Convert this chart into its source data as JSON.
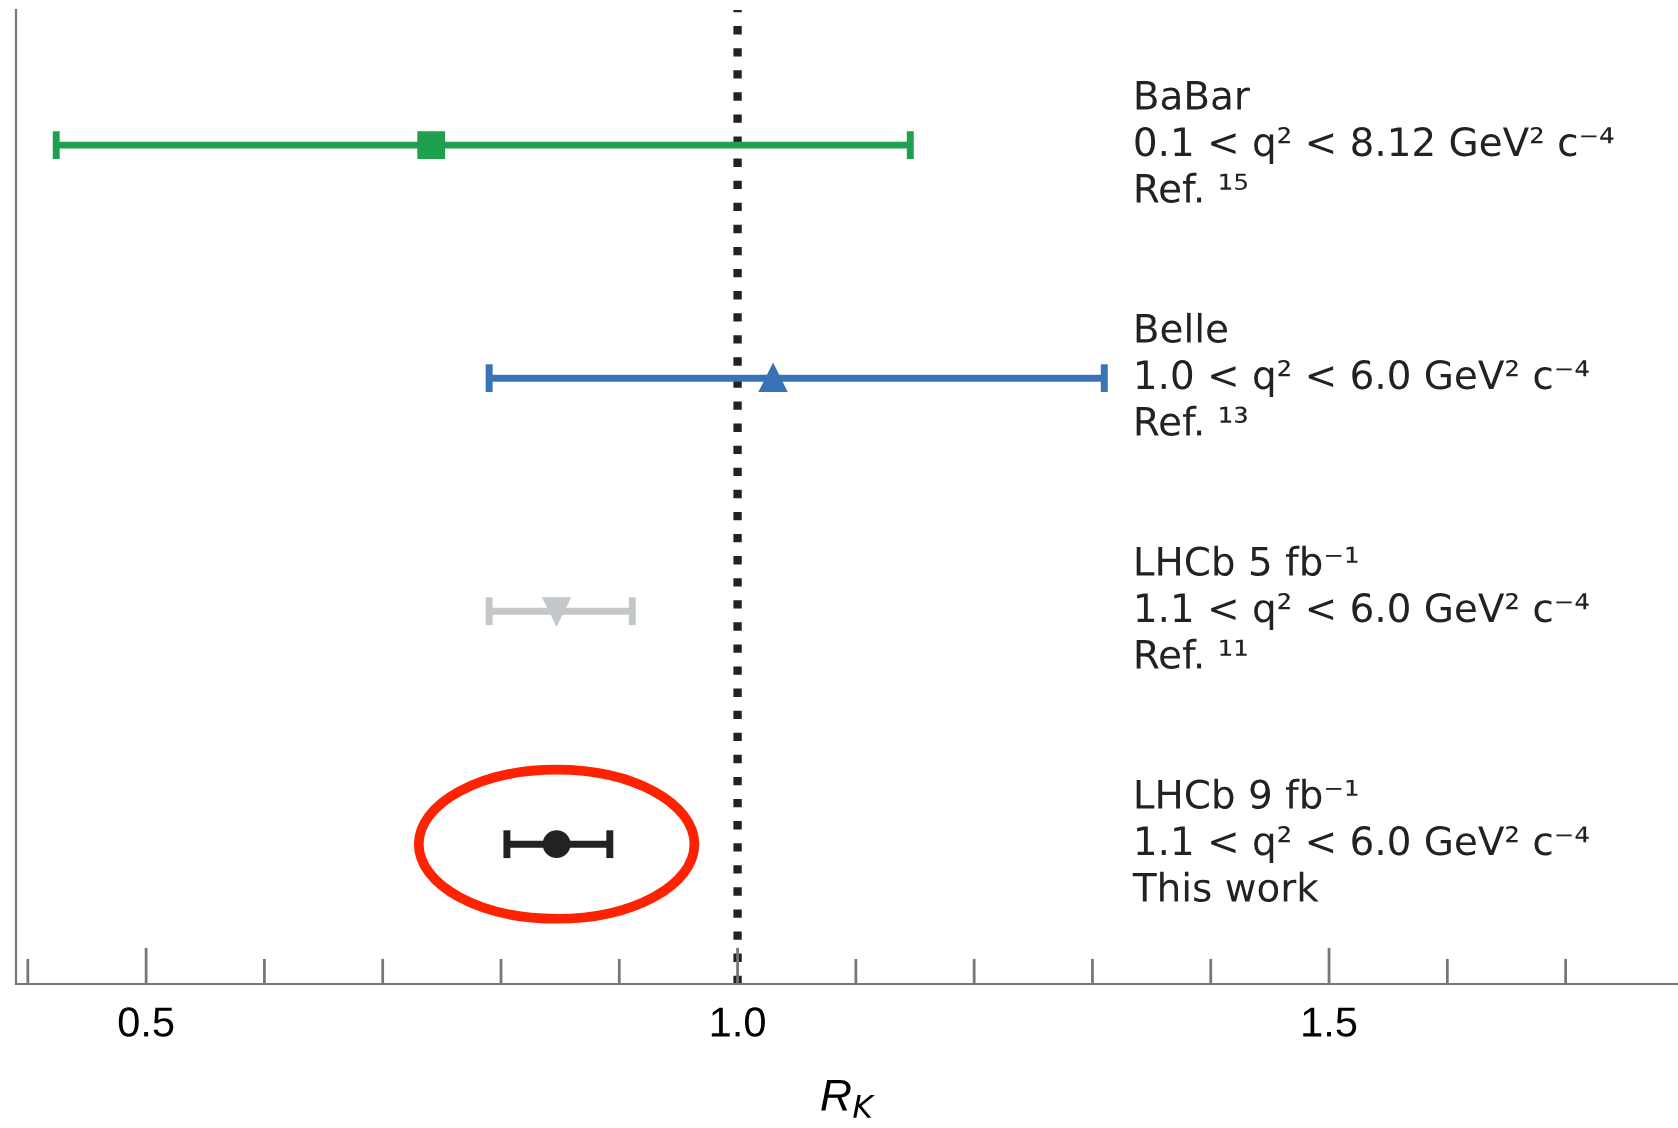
{
  "chart_data": {
    "type": "scatter",
    "orientation": "horizontal",
    "categories": [
      "BaBar\n0.1 < q² < 8.12 GeV² c⁻⁴\nRef. ¹⁵",
      "Belle\n1.0 < q² < 6.0 GeV² c⁻⁴\nRef. ¹³",
      "LHCb 5 fb⁻¹\n1.1 < q² < 6.0 GeV² c⁻⁴\nRef. ¹¹",
      "LHCb 9 fb⁻¹\n1.1 < q² < 6.0 GeV² c⁻⁴\nThis work"
    ],
    "series": [
      {
        "color": "#1fa04f",
        "marker": "square",
        "values": [
          0.741,
          null,
          null,
          null
        ],
        "errors": [
          [
            0.424,
            1.146
          ],
          null,
          null,
          null
        ]
      },
      {
        "color": "#3a72b8",
        "marker": "triangle",
        "values": [
          null,
          1.03,
          null,
          null
        ],
        "errors": [
          null,
          [
            0.79,
            1.31
          ],
          null,
          null
        ]
      },
      {
        "color": "#c4c7c9",
        "marker": "triangle_down",
        "values": [
          null,
          null,
          0.847,
          null
        ],
        "errors": [
          null,
          null,
          [
            0.79,
            0.911
          ],
          null
        ]
      },
      {
        "color": "#222222",
        "marker": "circle",
        "values": [
          null,
          null,
          null,
          0.847
        ],
        "errors": [
          null,
          null,
          null,
          [
            0.805,
            0.892
          ]
        ]
      }
    ],
    "xlabel": "R$_{K}$",
    "xlim": [
      0.39,
      1.795
    ],
    "xticks": [
      {
        "value": 0.4,
        "label": null
      },
      {
        "value": 0.5,
        "label": "0.5"
      },
      {
        "value": 0.6,
        "label": null
      },
      {
        "value": 0.7,
        "label": null
      },
      {
        "value": 0.8,
        "label": null
      },
      {
        "value": 0.9,
        "label": null
      },
      {
        "value": 1,
        "label": "1.0"
      },
      {
        "value": 1.1,
        "label": null
      },
      {
        "value": 1.2,
        "label": null
      },
      {
        "value": 1.3,
        "label": null
      },
      {
        "value": 1.4,
        "label": null
      },
      {
        "value": 1.5,
        "label": "1.5"
      },
      {
        "value": 1.6,
        "label": null
      },
      {
        "value": 1.7,
        "label": null
      }
    ],
    "ref_lines": [
      {
        "axis": "x",
        "value": 1,
        "color": "#222222",
        "line_style": "dotted"
      }
    ],
    "tick_labels": "x",
    "grid": false,
    "legend": false
  }
}
